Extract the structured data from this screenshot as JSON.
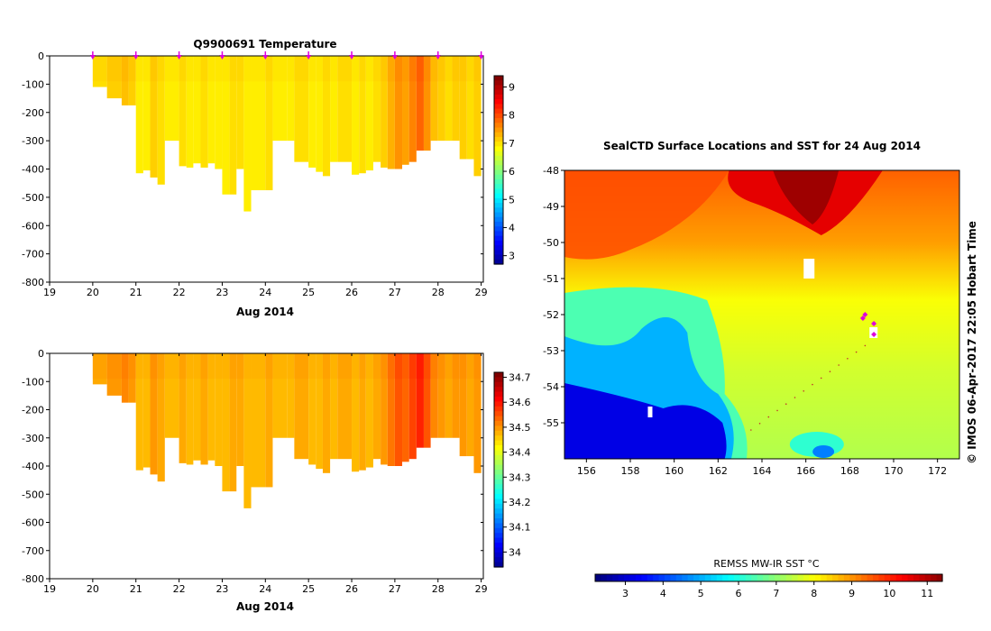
{
  "chart_data": [
    {
      "type": "heatmap",
      "title": "Q9900691  Temperature",
      "xlabel": "Aug 2014",
      "x_ticks": [
        "19",
        "20",
        "21",
        "22",
        "23",
        "24",
        "25",
        "26",
        "27",
        "28",
        "29"
      ],
      "y_ticks": [
        "0",
        "-100",
        "-200",
        "-300",
        "-400",
        "-500",
        "-600",
        "-700",
        "-800"
      ],
      "xlim": [
        19,
        29.05
      ],
      "ylim": [
        -800,
        0
      ],
      "profile_markers_day": [
        20.0,
        21.0,
        22.0,
        23.0,
        24.0,
        25.0,
        26.0,
        27.0,
        28.0,
        29.0
      ],
      "profiles": [
        {
          "day": 20.0,
          "max_depth": -110,
          "value": 7.1
        },
        {
          "day": 20.33,
          "max_depth": -150,
          "value": 7.2
        },
        {
          "day": 20.67,
          "max_depth": -175,
          "value": 7.3
        },
        {
          "day": 20.83,
          "max_depth": -175,
          "value": 7.2
        },
        {
          "day": 21.0,
          "max_depth": -415,
          "value": 7.0
        },
        {
          "day": 21.17,
          "max_depth": -405,
          "value": 7.0
        },
        {
          "day": 21.33,
          "max_depth": -430,
          "value": 7.2
        },
        {
          "day": 21.5,
          "max_depth": -455,
          "value": 7.1
        },
        {
          "day": 21.67,
          "max_depth": -300,
          "value": 7.0
        },
        {
          "day": 22.0,
          "max_depth": -390,
          "value": 7.1
        },
        {
          "day": 22.17,
          "max_depth": -395,
          "value": 7.0
        },
        {
          "day": 22.33,
          "max_depth": -380,
          "value": 7.0
        },
        {
          "day": 22.5,
          "max_depth": -395,
          "value": 7.1
        },
        {
          "day": 22.67,
          "max_depth": -380,
          "value": 7.0
        },
        {
          "day": 22.83,
          "max_depth": -400,
          "value": 7.0
        },
        {
          "day": 23.0,
          "max_depth": -490,
          "value": 7.0
        },
        {
          "day": 23.17,
          "max_depth": -490,
          "value": 7.1
        },
        {
          "day": 23.33,
          "max_depth": -400,
          "value": 7.1
        },
        {
          "day": 23.5,
          "max_depth": -550,
          "value": 7.0
        },
        {
          "day": 23.67,
          "max_depth": -475,
          "value": 7.0
        },
        {
          "day": 24.0,
          "max_depth": -475,
          "value": 7.1
        },
        {
          "day": 24.17,
          "max_depth": -300,
          "value": 7.0
        },
        {
          "day": 24.5,
          "max_depth": -300,
          "value": 7.0
        },
        {
          "day": 24.67,
          "max_depth": -375,
          "value": 7.1
        },
        {
          "day": 25.0,
          "max_depth": -395,
          "value": 7.0
        },
        {
          "day": 25.17,
          "max_depth": -410,
          "value": 7.0
        },
        {
          "day": 25.33,
          "max_depth": -425,
          "value": 7.1
        },
        {
          "day": 25.5,
          "max_depth": -375,
          "value": 7.0
        },
        {
          "day": 25.67,
          "max_depth": -375,
          "value": 7.1
        },
        {
          "day": 26.0,
          "max_depth": -420,
          "value": 7.0
        },
        {
          "day": 26.17,
          "max_depth": -415,
          "value": 7.1
        },
        {
          "day": 26.33,
          "max_depth": -405,
          "value": 7.0
        },
        {
          "day": 26.5,
          "max_depth": -375,
          "value": 7.1
        },
        {
          "day": 26.67,
          "max_depth": -395,
          "value": 7.2
        },
        {
          "day": 26.83,
          "max_depth": -400,
          "value": 7.4
        },
        {
          "day": 27.0,
          "max_depth": -400,
          "value": 7.6
        },
        {
          "day": 27.17,
          "max_depth": -385,
          "value": 7.5
        },
        {
          "day": 27.33,
          "max_depth": -375,
          "value": 7.7
        },
        {
          "day": 27.5,
          "max_depth": -335,
          "value": 7.9
        },
        {
          "day": 27.67,
          "max_depth": -335,
          "value": 7.6
        },
        {
          "day": 27.83,
          "max_depth": -300,
          "value": 7.3
        },
        {
          "day": 28.0,
          "max_depth": -300,
          "value": 7.2
        },
        {
          "day": 28.17,
          "max_depth": -300,
          "value": 7.1
        },
        {
          "day": 28.33,
          "max_depth": -300,
          "value": 7.2
        },
        {
          "day": 28.5,
          "max_depth": -365,
          "value": 7.2
        },
        {
          "day": 28.67,
          "max_depth": -365,
          "value": 7.1
        },
        {
          "day": 28.83,
          "max_depth": -425,
          "value": 7.2
        }
      ],
      "colorbar": {
        "ticks": [
          "9",
          "8",
          "7",
          "6",
          "5",
          "4",
          "3"
        ],
        "range": [
          2.7,
          9.4
        ]
      }
    },
    {
      "type": "heatmap",
      "title": "",
      "xlabel": "Aug 2014",
      "x_ticks": [
        "19",
        "20",
        "21",
        "22",
        "23",
        "24",
        "25",
        "26",
        "27",
        "28",
        "29"
      ],
      "y_ticks": [
        "0",
        "-100",
        "-200",
        "-300",
        "-400",
        "-500",
        "-600",
        "-700",
        "-800"
      ],
      "xlim": [
        19,
        29.05
      ],
      "ylim": [
        -800,
        0
      ],
      "profiles_same_as": 0,
      "value_mapping": "salinity approx 34.45-34.6",
      "colorbar": {
        "ticks": [
          "34.7",
          "34.6",
          "34.5",
          "34.4",
          "34.3",
          "34.2",
          "34.1",
          "34"
        ],
        "range": [
          33.94,
          34.72
        ]
      }
    },
    {
      "type": "heatmap",
      "title": "SealCTD Surface Locations and SST for 24 Aug 2014",
      "x_ticks": [
        "156",
        "158",
        "160",
        "162",
        "164",
        "166",
        "168",
        "170",
        "172"
      ],
      "y_ticks": [
        "-48",
        "-49",
        "-50",
        "-51",
        "-52",
        "-53",
        "-54",
        "-55"
      ],
      "xlim": [
        155,
        173
      ],
      "ylim": [
        -56,
        -48
      ],
      "credit": "© IMOS 06-Apr-2017 22:05 Hobart Time",
      "colorbar": {
        "label": "REMSS MW-IR SST °C",
        "ticks": [
          "3",
          "4",
          "5",
          "6",
          "7",
          "8",
          "9",
          "10",
          "11"
        ],
        "range": [
          2.2,
          11.4
        ]
      },
      "track_points": [
        {
          "lon": 168.6,
          "lat": -52.1
        },
        {
          "lon": 168.7,
          "lat": -52.0
        },
        {
          "lon": 169.1,
          "lat": -52.25
        },
        {
          "lon": 169.1,
          "lat": -52.55
        }
      ]
    }
  ],
  "colors": {
    "marker": "#dd00dd",
    "jet": [
      "#00007f",
      "#0000ff",
      "#007fff",
      "#00ffff",
      "#7fff7f",
      "#ffff00",
      "#ff7f00",
      "#ff0000",
      "#7f0000"
    ]
  }
}
